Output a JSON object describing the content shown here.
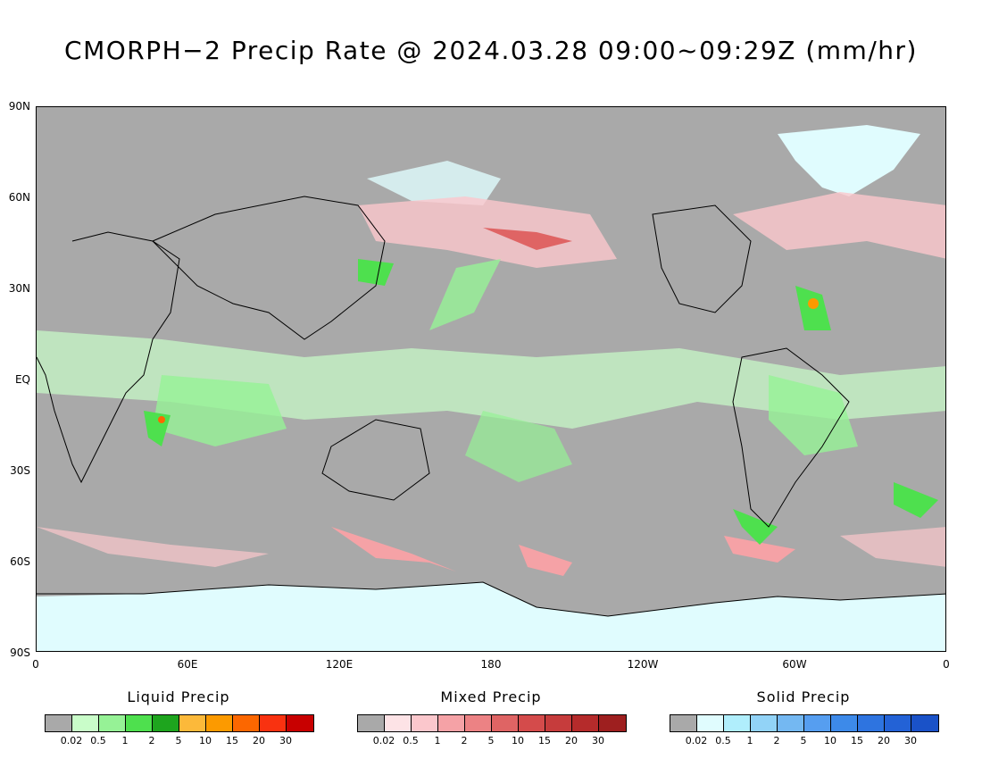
{
  "title": "CMORPH−2 Precip Rate @ 2024.03.28 09:00~09:29Z (mm/hr)",
  "lat_labels": [
    "90N",
    "60N",
    "30N",
    "EQ",
    "30S",
    "60S",
    "90S"
  ],
  "lon_labels": [
    "0",
    "60E",
    "120E",
    "180",
    "120W",
    "60W",
    "0"
  ],
  "colors": {
    "no_precip": "#a9a9a9",
    "background": "#ffffff",
    "coastline": "#000000"
  },
  "legends": [
    {
      "title": "Liquid Precip",
      "colors": [
        "#a9a9a9",
        "#c9fdc9",
        "#96f296",
        "#4ee04e",
        "#1ea51e",
        "#fcb93a",
        "#fc9a00",
        "#fc6700",
        "#f93210",
        "#c80000"
      ]
    },
    {
      "title": "Mixed Precip",
      "colors": [
        "#a9a9a9",
        "#fde3e6",
        "#fbc7cc",
        "#f5a2a6",
        "#ec8284",
        "#df6464",
        "#d44b4b",
        "#c63c3c",
        "#b52b2b",
        "#9e1f1f"
      ]
    },
    {
      "title": "Solid Precip",
      "colors": [
        "#a9a9a9",
        "#e0fcfe",
        "#b0eefc",
        "#92d3f7",
        "#74b8f2",
        "#569ef0",
        "#3d8ae9",
        "#2e74e0",
        "#2362d6",
        "#1a52c8"
      ]
    }
  ],
  "tick_labels": [
    "0.02",
    "0.5",
    "1",
    "2",
    "5",
    "10",
    "15",
    "20",
    "30"
  ]
}
